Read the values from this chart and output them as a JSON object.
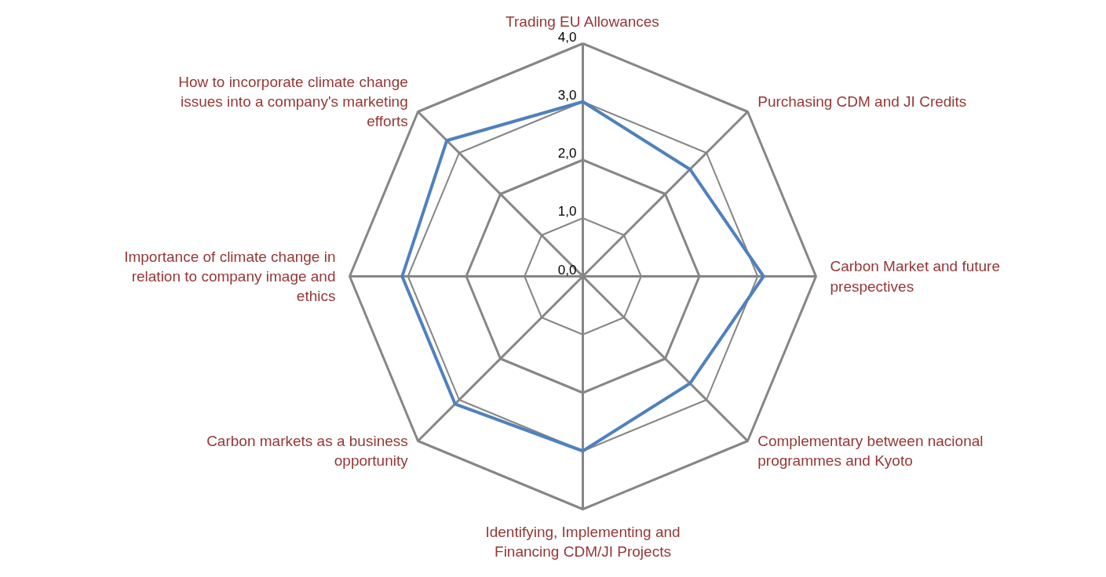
{
  "chart_data": {
    "type": "radar",
    "categories": [
      "Trading EU Allowances",
      "Purchasing CDM and JI Credits",
      "Carbon Market  and future prespectives",
      "Complementary between nacional programmes and Kyoto",
      "Identifying, Implementing and Financing CDM/JI Projects",
      "Carbon markets as a business opportunity",
      "Importance of climate change in relation to company image and ethics",
      "How to incorporate climate change issues into a company's marketing efforts"
    ],
    "series": [
      {
        "color": "#4f81bd",
        "values": [
          3.0,
          2.6,
          3.1,
          2.6,
          3.0,
          3.1,
          3.1,
          3.3
        ]
      }
    ],
    "ylim": [
      0,
      4
    ],
    "yticks": [
      {
        "value": 0,
        "label": "0,0"
      },
      {
        "value": 1,
        "label": "1,0"
      },
      {
        "value": 2,
        "label": "2,0"
      },
      {
        "value": 3,
        "label": "3,0"
      },
      {
        "value": 4,
        "label": "4,0"
      }
    ],
    "grid": true,
    "marker": "none",
    "line_style": "solid"
  }
}
